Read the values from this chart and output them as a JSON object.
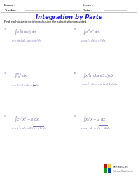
{
  "background_color": "#ffffff",
  "title": "Integration by Parts",
  "title_color": "#1a1aff",
  "instruction": "Find each indefinite integral using the substitution provided.",
  "math_color": "#7777bb",
  "header_line_color": "#cccccc",
  "logo_colors": [
    "#dd0000",
    "#ffcc00",
    "#00aa00",
    "#0044cc"
  ],
  "problems": [
    {
      "num": "1)",
      "integral": "$\\int x^2\\!\\sin(x)\\,dx$",
      "sub": "$u=\\sin(x),\\; dv=x^2\\,dx$"
    },
    {
      "num": "2)",
      "integral": "$\\int x^2 e^{x}\\,dx$",
      "sub": "$u=x^2,\\; dv=e^{x}\\,dx$"
    },
    {
      "num": "3)",
      "integral": "$\\int \\frac{\\ln x}{x}\\,dx$",
      "sub": "$u=\\ln(x),\\; dv=\\frac{1}{x}\\,dx$"
    },
    {
      "num": "4)",
      "integral": "$\\int x^2\\!\\arctan(3x)\\,dx$",
      "sub": "$u=x^2,\\; dv=\\arctan(3x)\\,dx$"
    },
    {
      "num": "5)",
      "integral": "$\\int x\\sqrt{x^2+b}\\,dx$",
      "sub": "$u=x^2,\\; dv=2\\sqrt{x^2+b}\\,dx$"
    },
    {
      "num": "6)",
      "integral": "$\\int x\\sqrt{x+2}\\,dx$",
      "sub": "$u=x,\\; dv=\\sqrt{x+2}\\,dx$"
    }
  ]
}
